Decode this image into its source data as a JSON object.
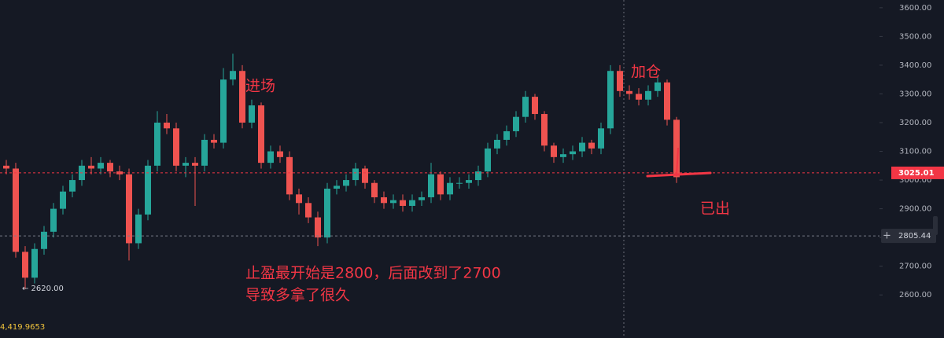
{
  "chart_data": {
    "type": "candlestick",
    "open": [
      3050,
      3040,
      2750,
      2660,
      2760,
      2820,
      2900,
      2960,
      3000,
      3050,
      3040,
      3060,
      3030,
      3020,
      2780,
      2880,
      3050,
      3200,
      3180,
      3050,
      3060,
      3050,
      3140,
      3130,
      3350,
      3380,
      3200,
      3260,
      3060,
      3100,
      3080,
      2950,
      2920,
      2870,
      2800,
      2970,
      2980,
      3000,
      3040,
      2990,
      2940,
      2920,
      2930,
      2910,
      2930,
      2940,
      3020,
      2950,
      2990,
      2990,
      3000,
      3030,
      3110,
      3140,
      3170,
      3220,
      3290,
      3230,
      3120,
      3080,
      3090,
      3100,
      3130,
      3110,
      3180,
      3380,
      3310,
      3300,
      3280,
      3310,
      3340,
      3210
    ],
    "high": [
      3070,
      3060,
      2770,
      2780,
      2840,
      2920,
      2980,
      3020,
      3070,
      3080,
      3080,
      3070,
      3050,
      3040,
      2900,
      3070,
      3240,
      3230,
      3200,
      3080,
      3080,
      3160,
      3160,
      3390,
      3440,
      3400,
      3280,
      3270,
      3120,
      3120,
      3100,
      2970,
      2940,
      2890,
      2990,
      3000,
      3020,
      3060,
      3050,
      3000,
      2960,
      2950,
      2950,
      2950,
      2960,
      3060,
      3030,
      3010,
      3010,
      3020,
      3050,
      3130,
      3160,
      3190,
      3240,
      3310,
      3300,
      3240,
      3130,
      3110,
      3120,
      3150,
      3140,
      3200,
      3400,
      3400,
      3330,
      3320,
      3330,
      3360,
      3350,
      3220
    ],
    "low": [
      3020,
      2730,
      2620,
      2640,
      2740,
      2800,
      2880,
      2940,
      2980,
      3020,
      3020,
      3010,
      3000,
      2720,
      2760,
      2860,
      3030,
      3160,
      3030,
      3010,
      2910,
      3030,
      3110,
      3110,
      3330,
      3180,
      3180,
      3040,
      3040,
      3060,
      2930,
      2880,
      2850,
      2770,
      2780,
      2950,
      2960,
      2980,
      2970,
      2920,
      2900,
      2900,
      2890,
      2890,
      2910,
      2920,
      2930,
      2930,
      2970,
      2970,
      2980,
      3010,
      3090,
      3120,
      3150,
      3200,
      3210,
      3100,
      3060,
      3060,
      3070,
      3080,
      3090,
      3090,
      3160,
      3290,
      3280,
      3260,
      3260,
      3290,
      3190,
      2990
    ],
    "close": [
      3040,
      2750,
      2660,
      2760,
      2820,
      2900,
      2960,
      3000,
      3050,
      3040,
      3060,
      3030,
      3020,
      2780,
      2880,
      3050,
      3200,
      3180,
      3050,
      3060,
      3050,
      3140,
      3130,
      3350,
      3380,
      3200,
      3260,
      3060,
      3100,
      3080,
      2950,
      2920,
      2870,
      2800,
      2970,
      2980,
      3000,
      3040,
      2990,
      2940,
      2920,
      2930,
      2910,
      2930,
      2940,
      3020,
      2950,
      2990,
      2990,
      3000,
      3030,
      3110,
      3140,
      3170,
      3220,
      3290,
      3230,
      3120,
      3080,
      3090,
      3100,
      3130,
      3110,
      3180,
      3380,
      3310,
      3300,
      3280,
      3310,
      3340,
      3210,
      3010
    ],
    "up_color": "#26a69a",
    "down_color": "#ef5350",
    "ylim": [
      2450,
      3627
    ],
    "yticks": [
      {
        "value": 2600,
        "label": "2600.00"
      },
      {
        "value": 2700,
        "label": "2700.00"
      },
      {
        "value": 2800,
        "label": "2800.00"
      },
      {
        "value": 2900,
        "label": "2900.00"
      },
      {
        "value": 3000,
        "label": "3000.00"
      },
      {
        "value": 3100,
        "label": "3100.00"
      },
      {
        "value": 3200,
        "label": "3200.00"
      },
      {
        "value": 3300,
        "label": "3300.00"
      },
      {
        "value": 3400,
        "label": "3400.00"
      },
      {
        "value": 3500,
        "label": "3500.00"
      },
      {
        "value": 3600,
        "label": "3600.00"
      }
    ],
    "price_lines": [
      {
        "value": 3025.01,
        "color": "#f23645"
      },
      {
        "value": 2805.44,
        "color": "#787b86"
      }
    ],
    "annotations": {
      "entry": "进场",
      "add": "加仓",
      "exit": "已出",
      "note_1": "止盈最开始是2800，后面改到了2700",
      "note_2": "导致多拿了很久",
      "low_marker": "← 2620.00",
      "indicator": "4,419.9653"
    }
  }
}
